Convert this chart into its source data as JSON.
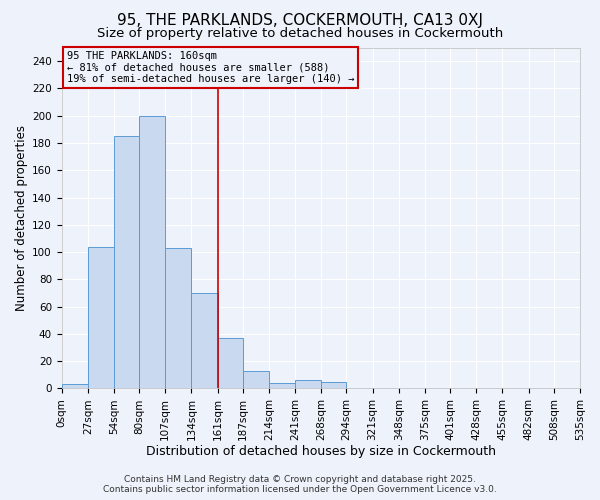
{
  "title1": "95, THE PARKLANDS, COCKERMOUTH, CA13 0XJ",
  "title2": "Size of property relative to detached houses in Cockermouth",
  "xlabel": "Distribution of detached houses by size in Cockermouth",
  "ylabel": "Number of detached properties",
  "bin_edges": [
    0,
    27,
    54,
    80,
    107,
    134,
    161,
    187,
    214,
    241,
    268,
    294,
    321,
    348,
    375,
    401,
    428,
    455,
    482,
    508,
    535
  ],
  "bin_labels": [
    "0sqm",
    "27sqm",
    "54sqm",
    "80sqm",
    "107sqm",
    "134sqm",
    "161sqm",
    "187sqm",
    "214sqm",
    "241sqm",
    "268sqm",
    "294sqm",
    "321sqm",
    "348sqm",
    "375sqm",
    "401sqm",
    "428sqm",
    "455sqm",
    "482sqm",
    "508sqm",
    "535sqm"
  ],
  "bar_heights": [
    3,
    104,
    185,
    200,
    103,
    70,
    37,
    13,
    4,
    6,
    5,
    0,
    0,
    0,
    0,
    0,
    0,
    0,
    0,
    0
  ],
  "bar_color": "#c8d9f0",
  "bar_edge_color": "#5b9bd5",
  "vline_x": 161,
  "vline_color": "#cc0000",
  "annotation_title": "95 THE PARKLANDS: 160sqm",
  "annotation_line1": "← 81% of detached houses are smaller (588)",
  "annotation_line2": "19% of semi-detached houses are larger (140) →",
  "annotation_box_color": "#cc0000",
  "ylim": [
    0,
    250
  ],
  "yticks": [
    0,
    20,
    40,
    60,
    80,
    100,
    120,
    140,
    160,
    180,
    200,
    220,
    240
  ],
  "footer1": "Contains HM Land Registry data © Crown copyright and database right 2025.",
  "footer2": "Contains public sector information licensed under the Open Government Licence v3.0.",
  "bg_color": "#eef2fa",
  "grid_color": "#ffffff",
  "title1_fontsize": 11,
  "title2_fontsize": 9.5,
  "xlabel_fontsize": 9,
  "ylabel_fontsize": 8.5,
  "tick_fontsize": 7.5,
  "ann_fontsize": 7.5,
  "footer_fontsize": 6.5
}
